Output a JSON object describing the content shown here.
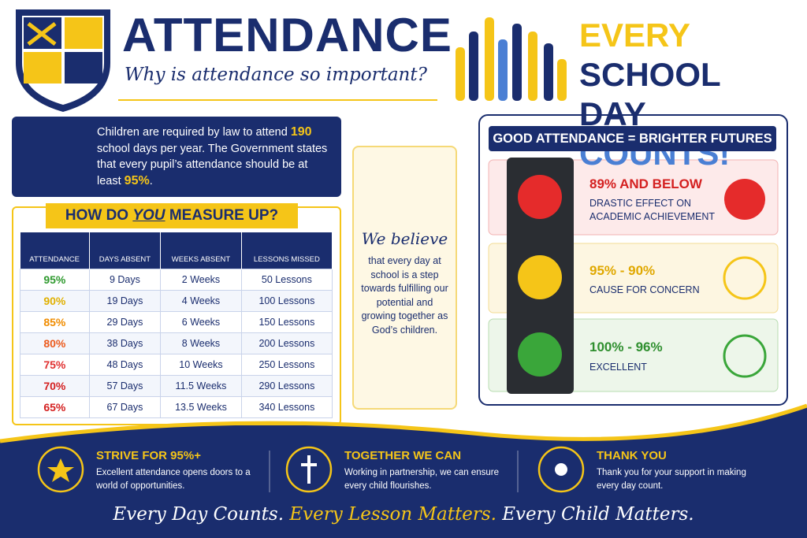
{
  "header": {
    "title": "ATTENDANCE",
    "subtitle": "Why is attendance so important?",
    "slogan": [
      "EVERY ",
      "SCHOOL",
      "DAY ",
      "COUNTS!"
    ]
  },
  "intro": {
    "parts": [
      "Children are required by law to attend ",
      "190",
      " school days per year. The Government states that every pupil’s attendance should be at least ",
      "95%",
      "."
    ]
  },
  "table": {
    "title_parts": [
      "HOW DO ",
      "YOU",
      " MEASURE UP?"
    ],
    "columns": [
      "ATTENDANCE",
      "DAYS ABSENT",
      "WEEKS ABSENT",
      "LESSONS MISSED"
    ],
    "rows": [
      [
        "95%",
        "9 Days",
        "2 Weeks",
        "50 Lessons"
      ],
      [
        "90%",
        "19 Days",
        "4 Weeks",
        "100 Lessons"
      ],
      [
        "85%",
        "29 Days",
        "6 Weeks",
        "150 Lessons"
      ],
      [
        "80%",
        "38 Days",
        "8 Weeks",
        "200 Lessons"
      ],
      [
        "75%",
        "48 Days",
        "10 Weeks",
        "250 Lessons"
      ],
      [
        "70%",
        "57 Days",
        "11.5 Weeks",
        "290 Lessons"
      ],
      [
        "65%",
        "67 Days",
        "13.5 Weeks",
        "340 Lessons"
      ]
    ]
  },
  "belief": {
    "title": "We believe",
    "text": "that every day at school is a step towards fulfilling our potential and growing together as God’s children."
  },
  "traffic": {
    "title": "GOOD ATTENDANCE = BRIGHTER FUTURES",
    "levels": [
      {
        "range": "89% AND BELOW",
        "label": "DRASTIC EFFECT ON ACADEMIC ACHIEVEMENT"
      },
      {
        "range": "95% - 90%",
        "label": "CAUSE FOR CONCERN"
      },
      {
        "range": "100% - 96%",
        "label": "EXCELLENT"
      }
    ]
  },
  "footer": {
    "items": [
      {
        "title": "STRIVE FOR 95%+",
        "text": "Excellent attendance opens doors to a world of opportunities."
      },
      {
        "title": "TOGETHER WE CAN",
        "text": "Working in partnership, we can ensure every child flourishes."
      },
      {
        "title": "THANK YOU",
        "text": "Thank you for your support in making every day count."
      }
    ],
    "motto": [
      "Every Day Counts. ",
      "Every Lesson Matters.",
      " Every Child Matters."
    ]
  }
}
